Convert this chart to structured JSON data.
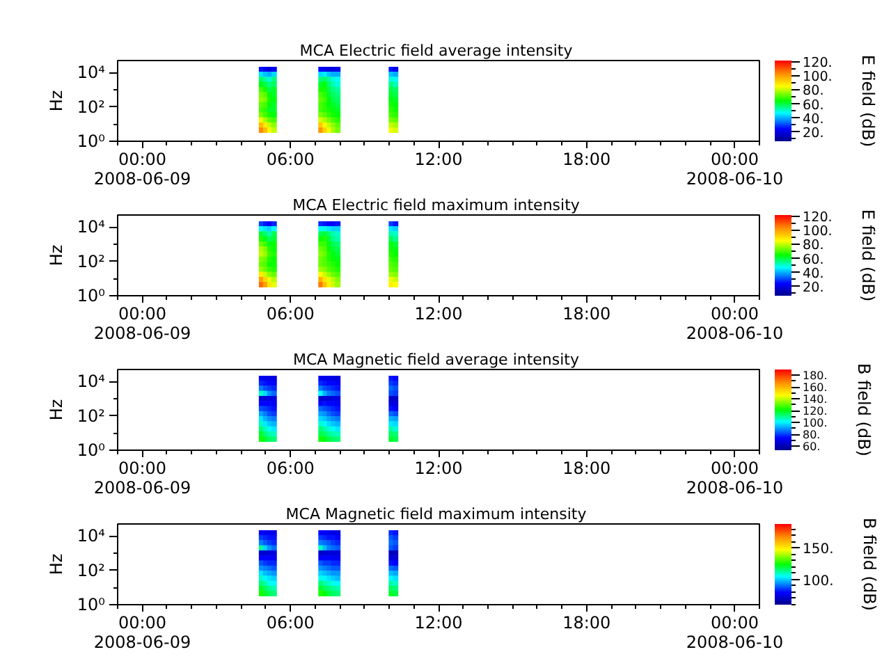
{
  "chart_data": [
    {
      "type": "scatter",
      "marker": "square",
      "title": "MCA  Electric field average intensity",
      "ylabel": "Hz",
      "clabel": "E field (dB)",
      "x": [
        4.83,
        5.0,
        5.17,
        5.34,
        7.24,
        7.41,
        7.58,
        7.75,
        7.92,
        10.09,
        10.26,
        4.83,
        5.0,
        5.17,
        5.34,
        7.24,
        7.41,
        7.58,
        7.75,
        7.92,
        10.09,
        10.26,
        4.83,
        5.0,
        5.17,
        5.34,
        7.24,
        7.41,
        7.58,
        7.75,
        7.92,
        10.09,
        10.26,
        4.83,
        5.0,
        5.17,
        5.34,
        7.24,
        7.41,
        7.58,
        7.75,
        7.92,
        10.09,
        10.26,
        4.83,
        5.0,
        5.17,
        5.34,
        7.24,
        7.41,
        7.58,
        7.75,
        7.92,
        10.09,
        10.26,
        4.83,
        5.0,
        5.17,
        5.34,
        7.24,
        7.41,
        7.58,
        7.75,
        7.92,
        10.09,
        10.26,
        4.83,
        5.0,
        5.17,
        5.34,
        7.24,
        7.41,
        7.58,
        7.75,
        7.92,
        10.09,
        10.26,
        4.83,
        5.0,
        5.17,
        5.34,
        7.24,
        7.41,
        7.58,
        7.75,
        7.92,
        10.09,
        10.26,
        4.83,
        5.0,
        5.17,
        5.34,
        7.24,
        7.41,
        7.58,
        7.75,
        7.92,
        10.09,
        10.26,
        4.83,
        5.0,
        5.17,
        5.34,
        7.24,
        7.41,
        7.58,
        7.75,
        7.92,
        10.09,
        10.26,
        4.83,
        5.0,
        5.17,
        5.34,
        7.24,
        7.41,
        7.58,
        7.75,
        7.92,
        10.09,
        10.26,
        4.83,
        5.0,
        5.17,
        5.34,
        7.24,
        7.41,
        7.58,
        7.75,
        7.92,
        10.09,
        10.26,
        4.83,
        5.0,
        5.17,
        5.34,
        7.24,
        7.41,
        7.58,
        7.75,
        7.92,
        10.09,
        10.26
      ],
      "values": [
        15000,
        15000,
        15000,
        15000,
        15000,
        15000,
        15000,
        15000,
        15000,
        15000,
        15000,
        7800,
        7800,
        7800,
        7800,
        7800,
        7800,
        7800,
        7800,
        7800,
        7800,
        7800,
        3900,
        3900,
        3900,
        3900,
        3900,
        3900,
        3900,
        3900,
        3900,
        3900,
        3900,
        2000,
        2000,
        2000,
        2000,
        2000,
        2000,
        2000,
        2000,
        2000,
        2000,
        2000,
        1000,
        1000,
        1000,
        1000,
        1000,
        1000,
        1000,
        1000,
        1000,
        1000,
        1000,
        510,
        510,
        510,
        510,
        510,
        510,
        510,
        510,
        510,
        510,
        510,
        260,
        260,
        260,
        260,
        260,
        260,
        260,
        260,
        260,
        260,
        260,
        130,
        130,
        130,
        130,
        130,
        130,
        130,
        130,
        130,
        130,
        130,
        66,
        66,
        66,
        66,
        66,
        66,
        66,
        66,
        66,
        66,
        66,
        34,
        34,
        34,
        34,
        34,
        34,
        34,
        34,
        34,
        34,
        34,
        17,
        17,
        17,
        17,
        17,
        17,
        17,
        17,
        17,
        17,
        17,
        8.7,
        8.7,
        8.7,
        8.7,
        8.7,
        8.7,
        8.7,
        8.7,
        8.7,
        8.7,
        8.7,
        4.4,
        4.4,
        4.4,
        4.4,
        4.4,
        4.4,
        4.4,
        4.4,
        4.4,
        4.4,
        4.4
      ],
      "cvalues": [
        26,
        22,
        20,
        24,
        24,
        22,
        20,
        20,
        22,
        26,
        22,
        45,
        42,
        40,
        44,
        44,
        46,
        42,
        40,
        40,
        42,
        40,
        58,
        54,
        50,
        56,
        56,
        58,
        54,
        50,
        48,
        50,
        48,
        64,
        60,
        56,
        58,
        62,
        64,
        58,
        52,
        50,
        56,
        52,
        70,
        66,
        60,
        62,
        66,
        66,
        60,
        56,
        54,
        60,
        58,
        74,
        72,
        64,
        62,
        70,
        68,
        62,
        58,
        56,
        62,
        60,
        76,
        74,
        66,
        64,
        72,
        70,
        64,
        60,
        58,
        64,
        62,
        72,
        70,
        64,
        62,
        70,
        68,
        64,
        62,
        60,
        66,
        64,
        70,
        68,
        62,
        62,
        70,
        68,
        66,
        64,
        62,
        68,
        66,
        74,
        70,
        66,
        64,
        74,
        72,
        68,
        66,
        64,
        70,
        68,
        84,
        78,
        72,
        70,
        82,
        78,
        74,
        70,
        68,
        74,
        72,
        96,
        88,
        80,
        76,
        94,
        86,
        80,
        76,
        72,
        80,
        78,
        104,
        96,
        86,
        80,
        102,
        92,
        84,
        78,
        74,
        84,
        82
      ],
      "xlim": [
        -1,
        25
      ],
      "xticks": [
        {
          "value": -1,
          "label": null
        },
        {
          "value": 0,
          "label": "00:00\n2008-06-09"
        },
        {
          "value": 1,
          "label": null
        },
        {
          "value": 2,
          "label": null
        },
        {
          "value": 3,
          "label": null
        },
        {
          "value": 4,
          "label": null
        },
        {
          "value": 5,
          "label": null
        },
        {
          "value": 6,
          "label": "06:00"
        },
        {
          "value": 7,
          "label": null
        },
        {
          "value": 8,
          "label": null
        },
        {
          "value": 9,
          "label": null
        },
        {
          "value": 10,
          "label": null
        },
        {
          "value": 11,
          "label": null
        },
        {
          "value": 12,
          "label": "12:00"
        },
        {
          "value": 13,
          "label": null
        },
        {
          "value": 14,
          "label": null
        },
        {
          "value": 15,
          "label": null
        },
        {
          "value": 16,
          "label": null
        },
        {
          "value": 17,
          "label": null
        },
        {
          "value": 18,
          "label": "18:00"
        },
        {
          "value": 19,
          "label": null
        },
        {
          "value": 20,
          "label": null
        },
        {
          "value": 21,
          "label": null
        },
        {
          "value": 22,
          "label": null
        },
        {
          "value": 23,
          "label": null
        },
        {
          "value": 24,
          "label": "00:00\n2008-06-10"
        },
        {
          "value": 25,
          "label": null
        }
      ],
      "ylim": [
        1,
        50000
      ],
      "yticks": [
        {
          "value": 1,
          "label": "10⁰"
        },
        {
          "value": 10,
          "label": null
        },
        {
          "value": 100,
          "label": "10²"
        },
        {
          "value": 1000,
          "label": null
        },
        {
          "value": 10000,
          "label": "10⁴"
        }
      ],
      "log": "y",
      "clim": [
        7,
        122
      ],
      "cticks": [
        {
          "value": 10,
          "label": null
        },
        {
          "value": 20,
          "label": "20."
        },
        {
          "value": 30,
          "label": null
        },
        {
          "value": 40,
          "label": "40."
        },
        {
          "value": 50,
          "label": null
        },
        {
          "value": 60,
          "label": "60."
        },
        {
          "value": 70,
          "label": null
        },
        {
          "value": 80,
          "label": "80."
        },
        {
          "value": 90,
          "label": null
        },
        {
          "value": 100,
          "label": "100."
        },
        {
          "value": 110,
          "label": null
        },
        {
          "value": 120,
          "label": "120."
        }
      ]
    },
    {
      "type": "scatter",
      "marker": "square",
      "title": "MCA  Electric field maximum intensity",
      "ylabel": "Hz",
      "clabel": "E field (dB)",
      "x": [
        4.83,
        5.0,
        5.17,
        5.34,
        7.24,
        7.41,
        7.58,
        7.75,
        7.92,
        10.09,
        10.26,
        4.83,
        5.0,
        5.17,
        5.34,
        7.24,
        7.41,
        7.58,
        7.75,
        7.92,
        10.09,
        10.26,
        4.83,
        5.0,
        5.17,
        5.34,
        7.24,
        7.41,
        7.58,
        7.75,
        7.92,
        10.09,
        10.26,
        4.83,
        5.0,
        5.17,
        5.34,
        7.24,
        7.41,
        7.58,
        7.75,
        7.92,
        10.09,
        10.26,
        4.83,
        5.0,
        5.17,
        5.34,
        7.24,
        7.41,
        7.58,
        7.75,
        7.92,
        10.09,
        10.26,
        4.83,
        5.0,
        5.17,
        5.34,
        7.24,
        7.41,
        7.58,
        7.75,
        7.92,
        10.09,
        10.26,
        4.83,
        5.0,
        5.17,
        5.34,
        7.24,
        7.41,
        7.58,
        7.75,
        7.92,
        10.09,
        10.26,
        4.83,
        5.0,
        5.17,
        5.34,
        7.24,
        7.41,
        7.58,
        7.75,
        7.92,
        10.09,
        10.26,
        4.83,
        5.0,
        5.17,
        5.34,
        7.24,
        7.41,
        7.58,
        7.75,
        7.92,
        10.09,
        10.26,
        4.83,
        5.0,
        5.17,
        5.34,
        7.24,
        7.41,
        7.58,
        7.75,
        7.92,
        10.09,
        10.26,
        4.83,
        5.0,
        5.17,
        5.34,
        7.24,
        7.41,
        7.58,
        7.75,
        7.92,
        10.09,
        10.26,
        4.83,
        5.0,
        5.17,
        5.34,
        7.24,
        7.41,
        7.58,
        7.75,
        7.92,
        10.09,
        10.26,
        4.83,
        5.0,
        5.17,
        5.34,
        7.24,
        7.41,
        7.58,
        7.75,
        7.92,
        10.09,
        10.26
      ],
      "values": [
        15000,
        15000,
        15000,
        15000,
        15000,
        15000,
        15000,
        15000,
        15000,
        15000,
        15000,
        7800,
        7800,
        7800,
        7800,
        7800,
        7800,
        7800,
        7800,
        7800,
        7800,
        7800,
        3900,
        3900,
        3900,
        3900,
        3900,
        3900,
        3900,
        3900,
        3900,
        3900,
        3900,
        2000,
        2000,
        2000,
        2000,
        2000,
        2000,
        2000,
        2000,
        2000,
        2000,
        2000,
        1000,
        1000,
        1000,
        1000,
        1000,
        1000,
        1000,
        1000,
        1000,
        1000,
        1000,
        510,
        510,
        510,
        510,
        510,
        510,
        510,
        510,
        510,
        510,
        510,
        260,
        260,
        260,
        260,
        260,
        260,
        260,
        260,
        260,
        260,
        260,
        130,
        130,
        130,
        130,
        130,
        130,
        130,
        130,
        130,
        130,
        130,
        66,
        66,
        66,
        66,
        66,
        66,
        66,
        66,
        66,
        66,
        66,
        34,
        34,
        34,
        34,
        34,
        34,
        34,
        34,
        34,
        34,
        34,
        17,
        17,
        17,
        17,
        17,
        17,
        17,
        17,
        17,
        17,
        17,
        8.7,
        8.7,
        8.7,
        8.7,
        8.7,
        8.7,
        8.7,
        8.7,
        8.7,
        8.7,
        8.7,
        4.4,
        4.4,
        4.4,
        4.4,
        4.4,
        4.4,
        4.4,
        4.4,
        4.4,
        4.4,
        4.4
      ],
      "cvalues": [
        30,
        26,
        24,
        28,
        28,
        26,
        24,
        24,
        26,
        30,
        26,
        48,
        45,
        43,
        47,
        47,
        49,
        45,
        43,
        43,
        45,
        43,
        61,
        57,
        53,
        59,
        59,
        61,
        57,
        53,
        51,
        53,
        51,
        67,
        63,
        59,
        61,
        65,
        67,
        61,
        55,
        53,
        59,
        55,
        73,
        69,
        63,
        65,
        69,
        69,
        63,
        59,
        57,
        63,
        61,
        78,
        75,
        67,
        65,
        73,
        71,
        65,
        61,
        59,
        65,
        63,
        80,
        77,
        69,
        67,
        75,
        73,
        67,
        63,
        61,
        67,
        65,
        75,
        73,
        67,
        65,
        73,
        71,
        67,
        65,
        63,
        69,
        67,
        73,
        71,
        65,
        65,
        73,
        71,
        69,
        67,
        65,
        71,
        69,
        77,
        73,
        69,
        67,
        77,
        75,
        71,
        69,
        67,
        73,
        71,
        88,
        81,
        75,
        73,
        85,
        81,
        77,
        73,
        71,
        77,
        75,
        100,
        92,
        83,
        79,
        97,
        89,
        83,
        79,
        75,
        83,
        81,
        108,
        100,
        89,
        83,
        106,
        95,
        87,
        81,
        77,
        87,
        85
      ],
      "xlim": [
        -1,
        25
      ],
      "xticks": [
        {
          "value": -1,
          "label": null
        },
        {
          "value": 0,
          "label": "00:00\n2008-06-09"
        },
        {
          "value": 1,
          "label": null
        },
        {
          "value": 2,
          "label": null
        },
        {
          "value": 3,
          "label": null
        },
        {
          "value": 4,
          "label": null
        },
        {
          "value": 5,
          "label": null
        },
        {
          "value": 6,
          "label": "06:00"
        },
        {
          "value": 7,
          "label": null
        },
        {
          "value": 8,
          "label": null
        },
        {
          "value": 9,
          "label": null
        },
        {
          "value": 10,
          "label": null
        },
        {
          "value": 11,
          "label": null
        },
        {
          "value": 12,
          "label": "12:00"
        },
        {
          "value": 13,
          "label": null
        },
        {
          "value": 14,
          "label": null
        },
        {
          "value": 15,
          "label": null
        },
        {
          "value": 16,
          "label": null
        },
        {
          "value": 17,
          "label": null
        },
        {
          "value": 18,
          "label": "18:00"
        },
        {
          "value": 19,
          "label": null
        },
        {
          "value": 20,
          "label": null
        },
        {
          "value": 21,
          "label": null
        },
        {
          "value": 22,
          "label": null
        },
        {
          "value": 23,
          "label": null
        },
        {
          "value": 24,
          "label": "00:00\n2008-06-10"
        },
        {
          "value": 25,
          "label": null
        }
      ],
      "ylim": [
        1,
        50000
      ],
      "yticks": [
        {
          "value": 1,
          "label": "10⁰"
        },
        {
          "value": 10,
          "label": null
        },
        {
          "value": 100,
          "label": "10²"
        },
        {
          "value": 1000,
          "label": null
        },
        {
          "value": 10000,
          "label": "10⁴"
        }
      ],
      "log": "y",
      "clim": [
        7,
        122
      ],
      "cticks": [
        {
          "value": 10,
          "label": null
        },
        {
          "value": 20,
          "label": "20."
        },
        {
          "value": 30,
          "label": null
        },
        {
          "value": 40,
          "label": "40."
        },
        {
          "value": 50,
          "label": null
        },
        {
          "value": 60,
          "label": "60."
        },
        {
          "value": 70,
          "label": null
        },
        {
          "value": 80,
          "label": "80."
        },
        {
          "value": 90,
          "label": null
        },
        {
          "value": 100,
          "label": "100."
        },
        {
          "value": 110,
          "label": null
        },
        {
          "value": 120,
          "label": "120."
        }
      ]
    },
    {
      "type": "scatter",
      "marker": "square",
      "title": "MCA  Magnetic field average intensity",
      "ylabel": "Hz",
      "clabel": "B field (dB)",
      "x": [
        4.83,
        5.0,
        5.17,
        5.34,
        7.24,
        7.41,
        7.58,
        7.75,
        7.92,
        10.09,
        10.26,
        4.83,
        5.0,
        5.17,
        5.34,
        7.24,
        7.41,
        7.58,
        7.75,
        7.92,
        10.09,
        10.26,
        4.83,
        5.0,
        5.17,
        5.34,
        7.24,
        7.41,
        7.58,
        7.75,
        7.92,
        10.09,
        10.26,
        4.83,
        5.0,
        5.17,
        5.34,
        7.24,
        7.41,
        7.58,
        7.75,
        7.92,
        10.09,
        10.26,
        4.83,
        5.0,
        5.17,
        5.34,
        7.24,
        7.41,
        7.58,
        7.75,
        7.92,
        10.09,
        10.26,
        4.83,
        5.0,
        5.17,
        5.34,
        7.24,
        7.41,
        7.58,
        7.75,
        7.92,
        10.09,
        10.26,
        4.83,
        5.0,
        5.17,
        5.34,
        7.24,
        7.41,
        7.58,
        7.75,
        7.92,
        10.09,
        10.26,
        4.83,
        5.0,
        5.17,
        5.34,
        7.24,
        7.41,
        7.58,
        7.75,
        7.92,
        10.09,
        10.26,
        4.83,
        5.0,
        5.17,
        5.34,
        7.24,
        7.41,
        7.58,
        7.75,
        7.92,
        10.09,
        10.26,
        4.83,
        5.0,
        5.17,
        5.34,
        7.24,
        7.41,
        7.58,
        7.75,
        7.92,
        10.09,
        10.26,
        4.83,
        5.0,
        5.17,
        5.34,
        7.24,
        7.41,
        7.58,
        7.75,
        7.92,
        10.09,
        10.26,
        4.83,
        5.0,
        5.17,
        5.34,
        7.24,
        7.41,
        7.58,
        7.75,
        7.92,
        10.09,
        10.26,
        4.83,
        5.0,
        5.17,
        5.34,
        7.24,
        7.41,
        7.58,
        7.75,
        7.92,
        10.09,
        10.26
      ],
      "values": [
        15000,
        15000,
        15000,
        15000,
        15000,
        15000,
        15000,
        15000,
        15000,
        15000,
        15000,
        7800,
        7800,
        7800,
        7800,
        7800,
        7800,
        7800,
        7800,
        7800,
        7800,
        7800,
        3900,
        3900,
        3900,
        3900,
        3900,
        3900,
        3900,
        3900,
        3900,
        3900,
        3900,
        2000,
        2000,
        2000,
        2000,
        2000,
        2000,
        2000,
        2000,
        2000,
        2000,
        2000,
        1000,
        1000,
        1000,
        1000,
        1000,
        1000,
        1000,
        1000,
        1000,
        1000,
        1000,
        510,
        510,
        510,
        510,
        510,
        510,
        510,
        510,
        510,
        510,
        510,
        260,
        260,
        260,
        260,
        260,
        260,
        260,
        260,
        260,
        260,
        260,
        130,
        130,
        130,
        130,
        130,
        130,
        130,
        130,
        130,
        130,
        130,
        66,
        66,
        66,
        66,
        66,
        66,
        66,
        66,
        66,
        66,
        66,
        34,
        34,
        34,
        34,
        34,
        34,
        34,
        34,
        34,
        34,
        34,
        17,
        17,
        17,
        17,
        17,
        17,
        17,
        17,
        17,
        17,
        17,
        8.7,
        8.7,
        8.7,
        8.7,
        8.7,
        8.7,
        8.7,
        8.7,
        8.7,
        8.7,
        8.7,
        4.4,
        4.4,
        4.4,
        4.4,
        4.4,
        4.4,
        4.4,
        4.4,
        4.4,
        4.4,
        4.4
      ],
      "cvalues": [
        72,
        70,
        70,
        68,
        72,
        70,
        70,
        68,
        68,
        76,
        74,
        78,
        76,
        74,
        74,
        78,
        76,
        74,
        74,
        72,
        80,
        78,
        87,
        82,
        80,
        78,
        87,
        82,
        80,
        78,
        76,
        85,
        82,
        106,
        97,
        89,
        85,
        101,
        93,
        87,
        85,
        82,
        82,
        80,
        66,
        66,
        68,
        68,
        64,
        66,
        66,
        68,
        68,
        64,
        64,
        74,
        74,
        74,
        72,
        74,
        76,
        74,
        74,
        72,
        68,
        68,
        82,
        80,
        78,
        76,
        85,
        82,
        80,
        78,
        76,
        76,
        74,
        91,
        87,
        82,
        80,
        91,
        89,
        85,
        82,
        80,
        85,
        82,
        99,
        93,
        89,
        87,
        97,
        95,
        91,
        89,
        87,
        93,
        91,
        106,
        99,
        95,
        93,
        104,
        102,
        97,
        95,
        93,
        99,
        97,
        112,
        106,
        102,
        99,
        112,
        108,
        104,
        102,
        99,
        108,
        104,
        118,
        112,
        108,
        106,
        116,
        114,
        110,
        108,
        106,
        114,
        112,
        123,
        118,
        114,
        112,
        123,
        120,
        116,
        114,
        112,
        118,
        116
      ],
      "xlim": [
        -1,
        25
      ],
      "xticks": [
        {
          "value": -1,
          "label": null
        },
        {
          "value": 0,
          "label": "00:00\n2008-06-09"
        },
        {
          "value": 1,
          "label": null
        },
        {
          "value": 2,
          "label": null
        },
        {
          "value": 3,
          "label": null
        },
        {
          "value": 4,
          "label": null
        },
        {
          "value": 5,
          "label": null
        },
        {
          "value": 6,
          "label": "06:00"
        },
        {
          "value": 7,
          "label": null
        },
        {
          "value": 8,
          "label": null
        },
        {
          "value": 9,
          "label": null
        },
        {
          "value": 10,
          "label": null
        },
        {
          "value": 11,
          "label": null
        },
        {
          "value": 12,
          "label": "12:00"
        },
        {
          "value": 13,
          "label": null
        },
        {
          "value": 14,
          "label": null
        },
        {
          "value": 15,
          "label": null
        },
        {
          "value": 16,
          "label": null
        },
        {
          "value": 17,
          "label": null
        },
        {
          "value": 18,
          "label": "18:00"
        },
        {
          "value": 19,
          "label": null
        },
        {
          "value": 20,
          "label": null
        },
        {
          "value": 21,
          "label": null
        },
        {
          "value": 22,
          "label": null
        },
        {
          "value": 23,
          "label": null
        },
        {
          "value": 24,
          "label": "00:00\n2008-06-10"
        },
        {
          "value": 25,
          "label": null
        }
      ],
      "ylim": [
        1,
        50000
      ],
      "yticks": [
        {
          "value": 1,
          "label": "10⁰"
        },
        {
          "value": 10,
          "label": null
        },
        {
          "value": 100,
          "label": "10²"
        },
        {
          "value": 1000,
          "label": null
        },
        {
          "value": 10000,
          "label": "10⁴"
        }
      ],
      "log": "y",
      "clim": [
        53,
        190
      ],
      "cticks": [
        {
          "value": 60,
          "label": "60."
        },
        {
          "value": 70,
          "label": null
        },
        {
          "value": 80,
          "label": "80."
        },
        {
          "value": 90,
          "label": null
        },
        {
          "value": 100,
          "label": "100."
        },
        {
          "value": 110,
          "label": null
        },
        {
          "value": 120,
          "label": "120."
        },
        {
          "value": 130,
          "label": null
        },
        {
          "value": 140,
          "label": "140."
        },
        {
          "value": 150,
          "label": null
        },
        {
          "value": 160,
          "label": "160."
        },
        {
          "value": 170,
          "label": null
        },
        {
          "value": 180,
          "label": "180."
        }
      ]
    },
    {
      "type": "scatter",
      "marker": "square",
      "title": "MCA  Magnetic field maximum intensity",
      "ylabel": "Hz",
      "clabel": "B field (dB)",
      "x": [
        4.83,
        5.0,
        5.17,
        5.34,
        7.24,
        7.41,
        7.58,
        7.75,
        7.92,
        10.09,
        10.26,
        4.83,
        5.0,
        5.17,
        5.34,
        7.24,
        7.41,
        7.58,
        7.75,
        7.92,
        10.09,
        10.26,
        4.83,
        5.0,
        5.17,
        5.34,
        7.24,
        7.41,
        7.58,
        7.75,
        7.92,
        10.09,
        10.26,
        4.83,
        5.0,
        5.17,
        5.34,
        7.24,
        7.41,
        7.58,
        7.75,
        7.92,
        10.09,
        10.26,
        4.83,
        5.0,
        5.17,
        5.34,
        7.24,
        7.41,
        7.58,
        7.75,
        7.92,
        10.09,
        10.26,
        4.83,
        5.0,
        5.17,
        5.34,
        7.24,
        7.41,
        7.58,
        7.75,
        7.92,
        10.09,
        10.26,
        4.83,
        5.0,
        5.17,
        5.34,
        7.24,
        7.41,
        7.58,
        7.75,
        7.92,
        10.09,
        10.26,
        4.83,
        5.0,
        5.17,
        5.34,
        7.24,
        7.41,
        7.58,
        7.75,
        7.92,
        10.09,
        10.26,
        4.83,
        5.0,
        5.17,
        5.34,
        7.24,
        7.41,
        7.58,
        7.75,
        7.92,
        10.09,
        10.26,
        4.83,
        5.0,
        5.17,
        5.34,
        7.24,
        7.41,
        7.58,
        7.75,
        7.92,
        10.09,
        10.26,
        4.83,
        5.0,
        5.17,
        5.34,
        7.24,
        7.41,
        7.58,
        7.75,
        7.92,
        10.09,
        10.26,
        4.83,
        5.0,
        5.17,
        5.34,
        7.24,
        7.41,
        7.58,
        7.75,
        7.92,
        10.09,
        10.26,
        4.83,
        5.0,
        5.17,
        5.34,
        7.24,
        7.41,
        7.58,
        7.75,
        7.92,
        10.09,
        10.26
      ],
      "values": [
        15000,
        15000,
        15000,
        15000,
        15000,
        15000,
        15000,
        15000,
        15000,
        15000,
        15000,
        7800,
        7800,
        7800,
        7800,
        7800,
        7800,
        7800,
        7800,
        7800,
        7800,
        7800,
        3900,
        3900,
        3900,
        3900,
        3900,
        3900,
        3900,
        3900,
        3900,
        3900,
        3900,
        2000,
        2000,
        2000,
        2000,
        2000,
        2000,
        2000,
        2000,
        2000,
        2000,
        2000,
        1000,
        1000,
        1000,
        1000,
        1000,
        1000,
        1000,
        1000,
        1000,
        1000,
        1000,
        510,
        510,
        510,
        510,
        510,
        510,
        510,
        510,
        510,
        510,
        510,
        260,
        260,
        260,
        260,
        260,
        260,
        260,
        260,
        260,
        260,
        260,
        130,
        130,
        130,
        130,
        130,
        130,
        130,
        130,
        130,
        130,
        130,
        66,
        66,
        66,
        66,
        66,
        66,
        66,
        66,
        66,
        66,
        66,
        34,
        34,
        34,
        34,
        34,
        34,
        34,
        34,
        34,
        34,
        34,
        17,
        17,
        17,
        17,
        17,
        17,
        17,
        17,
        17,
        17,
        17,
        8.7,
        8.7,
        8.7,
        8.7,
        8.7,
        8.7,
        8.7,
        8.7,
        8.7,
        8.7,
        8.7,
        4.4,
        4.4,
        4.4,
        4.4,
        4.4,
        4.4,
        4.4,
        4.4,
        4.4,
        4.4,
        4.4
      ],
      "cvalues": [
        79,
        77,
        77,
        75,
        79,
        77,
        77,
        75,
        75,
        83,
        81,
        85,
        83,
        81,
        81,
        85,
        83,
        81,
        81,
        79,
        88,
        85,
        92,
        88,
        85,
        83,
        92,
        90,
        88,
        85,
        83,
        90,
        88,
        113,
        100,
        94,
        90,
        109,
        98,
        92,
        90,
        88,
        88,
        85,
        71,
        71,
        73,
        73,
        71,
        71,
        73,
        73,
        73,
        68,
        68,
        79,
        79,
        79,
        77,
        79,
        79,
        79,
        77,
        77,
        73,
        73,
        88,
        85,
        83,
        83,
        88,
        85,
        85,
        83,
        83,
        81,
        79,
        94,
        92,
        90,
        88,
        94,
        92,
        90,
        88,
        88,
        90,
        88,
        102,
        98,
        96,
        94,
        100,
        98,
        96,
        94,
        94,
        98,
        96,
        109,
        104,
        102,
        100,
        106,
        104,
        102,
        100,
        98,
        104,
        102,
        115,
        111,
        106,
        104,
        115,
        111,
        109,
        106,
        104,
        111,
        109,
        121,
        117,
        113,
        111,
        121,
        117,
        115,
        113,
        111,
        117,
        115,
        126,
        121,
        117,
        115,
        126,
        124,
        119,
        117,
        115,
        121,
        119
      ],
      "xlim": [
        -1,
        25
      ],
      "xticks": [
        {
          "value": -1,
          "label": null
        },
        {
          "value": 0,
          "label": "00:00\n2008-06-09"
        },
        {
          "value": 1,
          "label": null
        },
        {
          "value": 2,
          "label": null
        },
        {
          "value": 3,
          "label": null
        },
        {
          "value": 4,
          "label": null
        },
        {
          "value": 5,
          "label": null
        },
        {
          "value": 6,
          "label": "06:00"
        },
        {
          "value": 7,
          "label": null
        },
        {
          "value": 8,
          "label": null
        },
        {
          "value": 9,
          "label": null
        },
        {
          "value": 10,
          "label": null
        },
        {
          "value": 11,
          "label": null
        },
        {
          "value": 12,
          "label": "12:00"
        },
        {
          "value": 13,
          "label": null
        },
        {
          "value": 14,
          "label": null
        },
        {
          "value": 15,
          "label": null
        },
        {
          "value": 16,
          "label": null
        },
        {
          "value": 17,
          "label": null
        },
        {
          "value": 18,
          "label": "18:00"
        },
        {
          "value": 19,
          "label": null
        },
        {
          "value": 20,
          "label": null
        },
        {
          "value": 21,
          "label": null
        },
        {
          "value": 22,
          "label": null
        },
        {
          "value": 23,
          "label": null
        },
        {
          "value": 24,
          "label": "00:00\n2008-06-10"
        },
        {
          "value": 25,
          "label": null
        }
      ],
      "ylim": [
        1,
        50000
      ],
      "yticks": [
        {
          "value": 1,
          "label": "10⁰"
        },
        {
          "value": 10,
          "label": null
        },
        {
          "value": 100,
          "label": "10²"
        },
        {
          "value": 1000,
          "label": null
        },
        {
          "value": 10000,
          "label": "10⁴"
        }
      ],
      "log": "y",
      "clim": [
        60,
        188
      ],
      "cticks": [
        {
          "value": 60,
          "label": null
        },
        {
          "value": 70,
          "label": null
        },
        {
          "value": 80,
          "label": null
        },
        {
          "value": 90,
          "label": null
        },
        {
          "value": 100,
          "label": "100."
        },
        {
          "value": 110,
          "label": null
        },
        {
          "value": 120,
          "label": null
        },
        {
          "value": 130,
          "label": null
        },
        {
          "value": 140,
          "label": null
        },
        {
          "value": 150,
          "label": "150."
        },
        {
          "value": 160,
          "label": null
        },
        {
          "value": 170,
          "label": null
        },
        {
          "value": 180,
          "label": null
        }
      ]
    }
  ]
}
